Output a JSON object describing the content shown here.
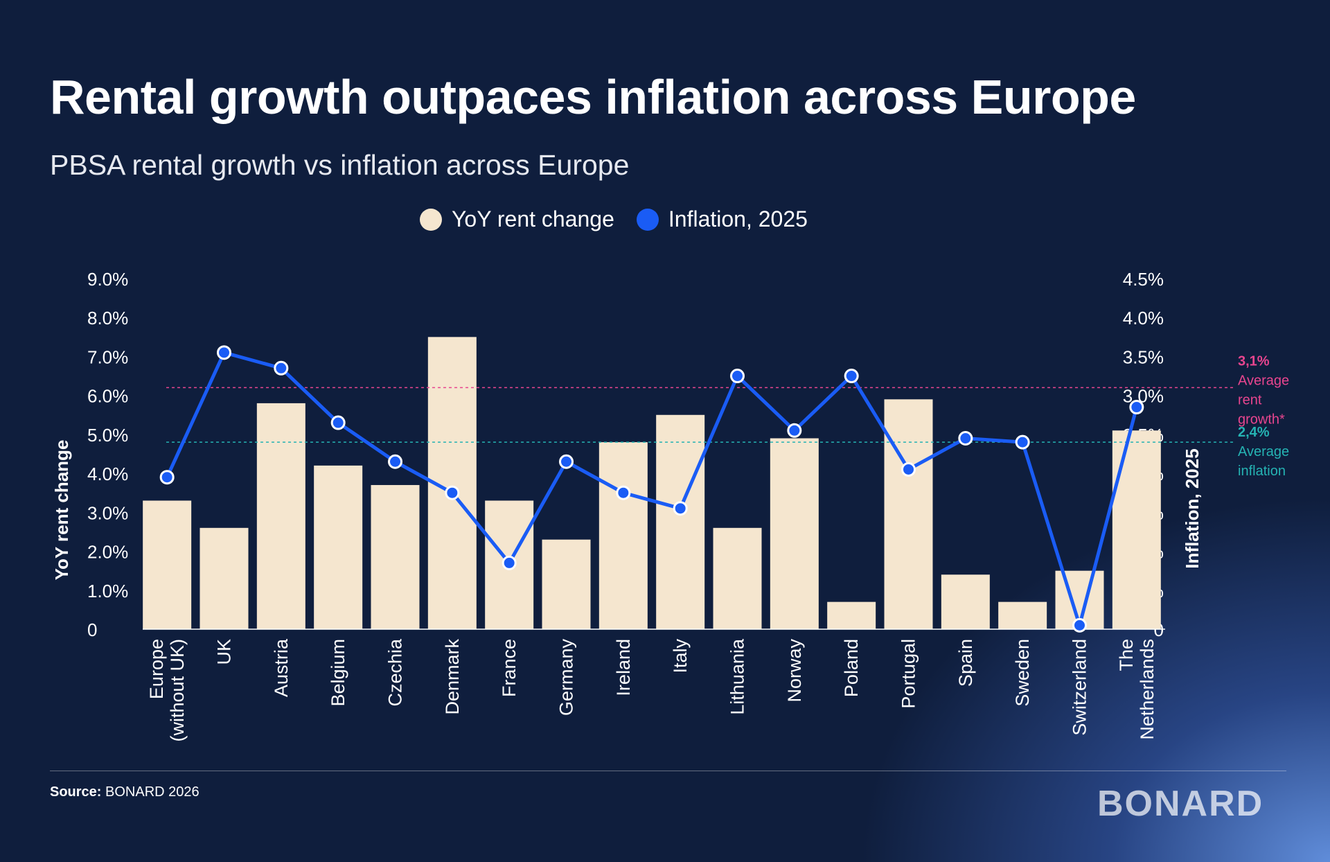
{
  "title": "Rental growth outpaces inflation across Europe",
  "subtitle": "PBSA rental growth vs inflation across Europe",
  "legend": [
    {
      "label": "YoY rent change",
      "color": "#f5e6cf"
    },
    {
      "label": "Inflation, 2025",
      "color": "#1a5cf5"
    }
  ],
  "source": {
    "label": "Source:",
    "text": "BONARD 2026"
  },
  "logo": "BONARD",
  "colors": {
    "bar": "#f5e6cf",
    "line": "#1a5cf5",
    "avg_rent": "#e8458f",
    "avg_inflation": "#25b3b3"
  },
  "chart_data": {
    "type": "bar",
    "categories": [
      "Europe (without UK)",
      "UK",
      "Austria",
      "Belgium",
      "Czechia",
      "Denmark",
      "France",
      "Germany",
      "Ireland",
      "Italy",
      "Lithuania",
      "Norway",
      "Poland",
      "Portugal",
      "Spain",
      "Sweden",
      "Switzerland",
      "The Netherlands"
    ],
    "category_lines": [
      [
        "Europe",
        "(without UK)"
      ],
      [
        "UK"
      ],
      [
        "Austria"
      ],
      [
        "Belgium"
      ],
      [
        "Czechia"
      ],
      [
        "Denmark"
      ],
      [
        "France"
      ],
      [
        "Germany"
      ],
      [
        "Ireland"
      ],
      [
        "Italy"
      ],
      [
        "Lithuania"
      ],
      [
        "Norway"
      ],
      [
        "Poland"
      ],
      [
        "Portugal"
      ],
      [
        "Spain"
      ],
      [
        "Sweden"
      ],
      [
        "Switzerland"
      ],
      [
        "The",
        "Netherlands"
      ]
    ],
    "series": [
      {
        "name": "YoY rent change",
        "type": "bar",
        "axis": "left",
        "values": [
          3.3,
          2.6,
          5.8,
          4.2,
          3.7,
          7.5,
          3.3,
          2.3,
          4.8,
          5.5,
          2.6,
          4.9,
          0.7,
          5.9,
          1.4,
          0.7,
          1.5,
          5.1
        ]
      },
      {
        "name": "Inflation, 2025",
        "type": "line",
        "axis": "right",
        "values": [
          1.95,
          3.55,
          3.35,
          2.65,
          2.15,
          1.75,
          0.85,
          2.15,
          1.75,
          1.55,
          3.25,
          2.55,
          3.25,
          2.05,
          2.45,
          2.4,
          0.05,
          2.85
        ]
      }
    ],
    "ylabel": "YoY rent change",
    "y2label": "Inflation, 2025",
    "ylim": [
      0,
      9
    ],
    "y2lim": [
      0,
      4.5
    ],
    "yticks": [
      "0",
      "1.0%",
      "2.0%",
      "3.0%",
      "4.0%",
      "5.0%",
      "6.0%",
      "7.0%",
      "8.0%",
      "9.0%"
    ],
    "y2ticks": [
      "0",
      "0.5%",
      "1.0%",
      "1.5%",
      "2.0%",
      "2.5%",
      "3.0%",
      "3.5%",
      "4.0%",
      "4.5%"
    ],
    "reference_lines": [
      {
        "axis": "right",
        "value": 3.1,
        "value_label": "3,1%",
        "lines": [
          "Average",
          "rent",
          "growth*"
        ],
        "color": "#e8458f"
      },
      {
        "axis": "right",
        "value": 2.4,
        "value_label": "2,4%",
        "lines": [
          "Average",
          "inflation"
        ],
        "color": "#25b3b3"
      }
    ],
    "grid": false,
    "legend_position": "top-center"
  }
}
